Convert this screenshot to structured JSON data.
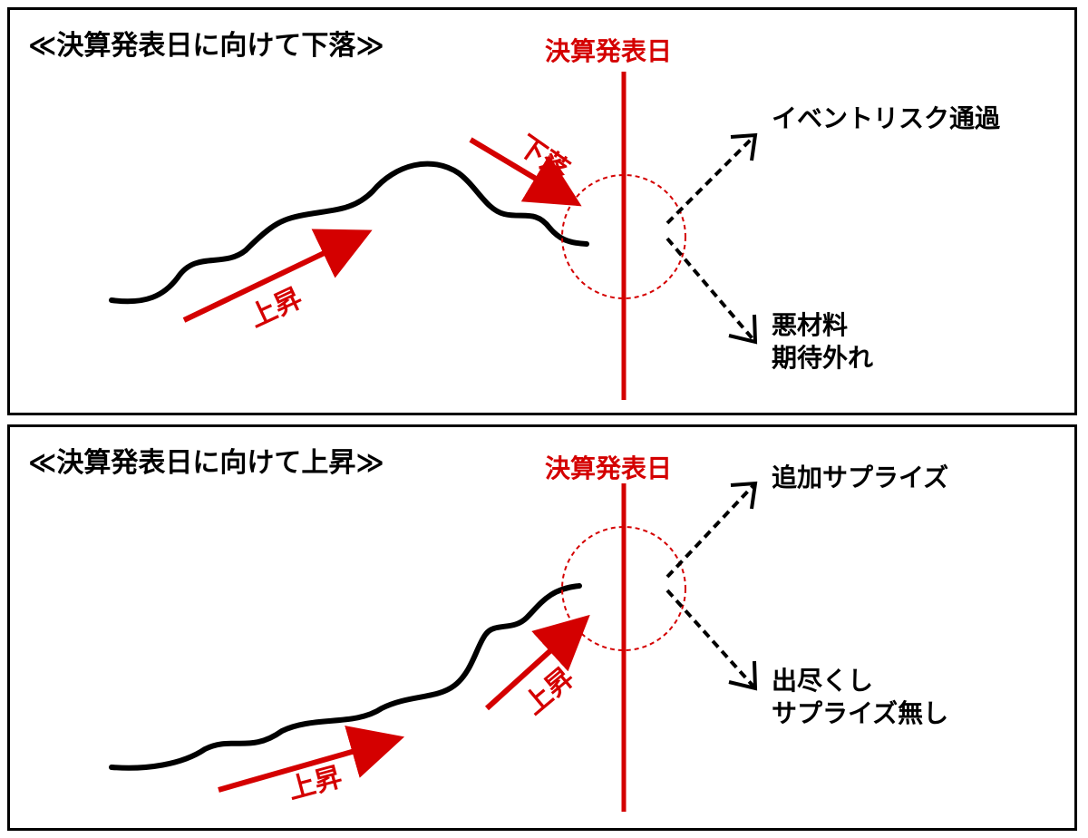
{
  "colors": {
    "accent_red": "#d40000",
    "line_black": "#000000"
  },
  "panels": [
    {
      "title": "≪決算発表日に向けて下落≫",
      "date_label": "決算発表日",
      "trend_labels": [
        "上昇",
        "下落"
      ],
      "outcomes": {
        "upper": "イベントリスク通過",
        "lower_line1": "悪材料",
        "lower_line2": "期待外れ"
      }
    },
    {
      "title": "≪決算発表日に向けて上昇≫",
      "date_label": "決算発表日",
      "trend_labels": [
        "上昇",
        "上昇"
      ],
      "outcomes": {
        "upper": "追加サプライズ",
        "lower_line1": "出尽くし",
        "lower_line2": "サプライズ無し"
      }
    }
  ]
}
